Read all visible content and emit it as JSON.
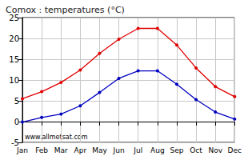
{
  "chart_data": {
    "type": "line",
    "title": "Comox : temperatures (°C)",
    "annotation": "www.allmetsat.com",
    "categories": [
      "Jan",
      "Feb",
      "Mar",
      "Apr",
      "May",
      "Jun",
      "Jul",
      "Aug",
      "Sep",
      "Oct",
      "Nov",
      "Dec"
    ],
    "series": [
      {
        "color": "#e00000",
        "marker": "circle",
        "line_style": "solid",
        "values": [
          5.5,
          7.2,
          9.4,
          12.4,
          16.4,
          19.8,
          22.4,
          22.4,
          18.4,
          12.9,
          8.4,
          6.0
        ]
      },
      {
        "color": "#0000c0",
        "marker": "circle",
        "line_style": "solid",
        "values": [
          -0.1,
          1.0,
          1.8,
          3.8,
          7.0,
          10.4,
          12.2,
          12.2,
          9.0,
          5.3,
          2.3,
          0.6
        ]
      }
    ],
    "ylim": [
      -5,
      25
    ],
    "yticks": [
      -5,
      0,
      5,
      10,
      15,
      20,
      25
    ],
    "grid": true
  }
}
